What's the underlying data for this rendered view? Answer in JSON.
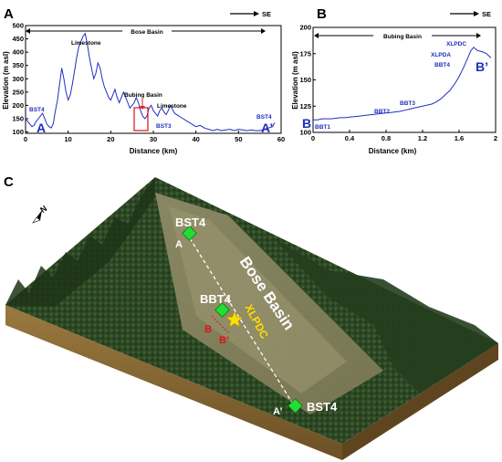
{
  "panel_labels": {
    "a": "A",
    "b": "B",
    "c": "C"
  },
  "direction_a": "SE",
  "direction_b": "SE",
  "chart_data": [
    {
      "type": "line",
      "panel": "A",
      "basin_label": "Bose Basin",
      "xlabel": "Distance (km)",
      "ylabel": "Elevation (m asl)",
      "xlim": [
        0,
        60
      ],
      "ylim": [
        95,
        500
      ],
      "xticks": [
        "0",
        "10",
        "20",
        "30",
        "40",
        "50",
        "60"
      ],
      "yticks": [
        "100",
        "150",
        "200",
        "250",
        "300",
        "350",
        "400",
        "450",
        "500"
      ],
      "annotations": {
        "start_site": "BST4",
        "end_site": "BST4",
        "mid_site": "BST3",
        "limestone_1": "Limestone",
        "limestone_2": "Limestone",
        "bubing": "Bubing Basin",
        "left_end": "A",
        "right_end": "A’"
      },
      "series": [
        {
          "x": [
            0,
            0.5,
            1,
            1.5,
            2,
            2.5,
            3,
            3.5,
            4,
            4.5,
            5,
            5.5,
            6,
            6.5,
            7,
            7.5,
            8,
            8.5,
            9,
            9.5,
            10,
            10.5,
            11,
            11.5,
            12,
            12.5,
            13,
            13.5,
            14,
            14.5,
            15,
            15.5,
            16,
            16.5,
            17,
            17.5,
            18,
            18.5,
            19,
            19.5,
            20,
            20.5,
            21,
            21.5,
            22,
            22.5,
            23,
            23.5,
            24,
            24.5,
            25,
            25.5,
            26,
            26.5,
            27,
            27.5,
            28,
            28.5,
            29,
            29.5,
            30,
            30.5,
            31,
            31.5,
            32,
            32.5,
            33,
            33.5,
            34,
            34.5,
            35,
            36,
            37,
            38,
            39,
            40,
            41,
            42,
            43,
            44,
            45,
            46,
            47,
            48,
            49,
            50,
            51,
            52,
            53,
            54,
            55,
            56,
            57,
            58,
            58.5
          ],
          "y": [
            150,
            140,
            130,
            120,
            125,
            140,
            150,
            160,
            170,
            150,
            130,
            120,
            115,
            130,
            180,
            220,
            280,
            340,
            300,
            250,
            220,
            240,
            280,
            330,
            380,
            420,
            440,
            460,
            470,
            430,
            380,
            340,
            300,
            320,
            360,
            340,
            300,
            270,
            250,
            230,
            220,
            240,
            260,
            230,
            210,
            230,
            250,
            230,
            210,
            190,
            200,
            210,
            230,
            210,
            180,
            160,
            150,
            160,
            190,
            200,
            180,
            170,
            160,
            180,
            190,
            175,
            165,
            180,
            200,
            185,
            170,
            160,
            150,
            140,
            130,
            120,
            125,
            115,
            110,
            105,
            110,
            105,
            108,
            110,
            105,
            110,
            108,
            105,
            108,
            105,
            105,
            110,
            115,
            120,
            135
          ]
        }
      ]
    },
    {
      "type": "line",
      "panel": "B",
      "basin_label": "Bubing Basin",
      "xlabel": "Distance (km)",
      "ylabel": "Elevation (m asl)",
      "xlim": [
        0,
        2
      ],
      "ylim": [
        100,
        200
      ],
      "xticks": [
        "0",
        "0.4",
        "0.8",
        "1.2",
        "1.6",
        "2"
      ],
      "yticks": [
        "100",
        "125",
        "150",
        "175",
        "200"
      ],
      "annotations": {
        "bbt1": "BBT1",
        "bbt2": "BBT2",
        "bbt3": "BBT3",
        "bbt4": "BBT4",
        "xlpda": "XLPDA",
        "xlpdc": "XLPDC",
        "left_end": "B",
        "right_end": "B’"
      },
      "series": [
        {
          "x": [
            0,
            0.05,
            0.1,
            0.15,
            0.2,
            0.25,
            0.3,
            0.35,
            0.4,
            0.45,
            0.5,
            0.55,
            0.6,
            0.65,
            0.7,
            0.75,
            0.8,
            0.85,
            0.9,
            0.95,
            1.0,
            1.05,
            1.1,
            1.15,
            1.2,
            1.25,
            1.3,
            1.35,
            1.4,
            1.45,
            1.5,
            1.55,
            1.6,
            1.65,
            1.7,
            1.73,
            1.76,
            1.8,
            1.85,
            1.9,
            1.95
          ],
          "y": [
            112,
            112,
            113,
            113,
            113,
            113.5,
            114,
            114,
            114.5,
            115,
            115.5,
            116,
            116.5,
            117,
            117.5,
            118,
            118.5,
            119,
            119.5,
            120,
            121,
            122,
            123,
            124,
            125,
            126,
            127,
            129,
            132,
            136,
            140,
            146,
            153,
            162,
            172,
            178,
            181,
            178,
            177,
            175,
            171
          ]
        }
      ]
    }
  ],
  "map": {
    "basin_label": "Bose Basin",
    "site_top": "BST4",
    "site_bottom": "BST4",
    "site_mid": "BBT4",
    "site_star": "XLPDC",
    "label_a": "A",
    "label_a_prime": "A’",
    "label_b": "B",
    "label_b_prime": "B’",
    "north_label": "N",
    "colors": {
      "marker": "#22dd33",
      "star": "#ffdd00",
      "star_label": "#ffdd00",
      "b_label": "#dd1111",
      "terrain": "#2f4a26",
      "valley": "#8a8560",
      "soil": "#7a5e2e"
    }
  }
}
